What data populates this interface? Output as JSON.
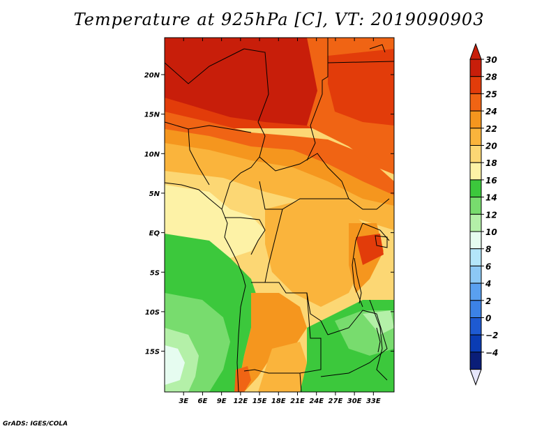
{
  "title": "Temperature at 925hPa [C], VT: 2019090903",
  "credit": "GrADS: IGES/COLA",
  "map": {
    "region": "Central Africa",
    "lon_range": [
      0,
      35
    ],
    "lat_range": [
      -20,
      25
    ],
    "lon_ticks": [
      {
        "value": 3,
        "label": "3E"
      },
      {
        "value": 6,
        "label": "6E"
      },
      {
        "value": 9,
        "label": "9E"
      },
      {
        "value": 12,
        "label": "12E"
      },
      {
        "value": 15,
        "label": "15E"
      },
      {
        "value": 18,
        "label": "18E"
      },
      {
        "value": 21,
        "label": "21E"
      },
      {
        "value": 24,
        "label": "24E"
      },
      {
        "value": 27,
        "label": "27E"
      },
      {
        "value": 30,
        "label": "30E"
      },
      {
        "value": 33,
        "label": "33E"
      }
    ],
    "lat_ticks": [
      {
        "value": 20,
        "label": "20N"
      },
      {
        "value": 15,
        "label": "15N"
      },
      {
        "value": 10,
        "label": "10N"
      },
      {
        "value": 5,
        "label": "5N"
      },
      {
        "value": 0,
        "label": "EQ"
      },
      {
        "value": -5,
        "label": "5S"
      },
      {
        "value": -10,
        "label": "10S"
      },
      {
        "value": -15,
        "label": "15S"
      }
    ]
  },
  "colorbar": {
    "levels": [
      {
        "label": "30",
        "color": "#c81e0a"
      },
      {
        "label": "28",
        "color": "#e23c0a"
      },
      {
        "label": "25",
        "color": "#f06414"
      },
      {
        "label": "24",
        "color": "#f5961e"
      },
      {
        "label": "22",
        "color": "#fab43c"
      },
      {
        "label": "20",
        "color": "#fcd774"
      },
      {
        "label": "18",
        "color": "#fdf2a6"
      },
      {
        "label": "16",
        "color": "#3cc83c"
      },
      {
        "label": "14",
        "color": "#78dc6e"
      },
      {
        "label": "12",
        "color": "#b4f0a8"
      },
      {
        "label": "10",
        "color": "#e6fcf0"
      },
      {
        "label": "8",
        "color": "#b4e6fa"
      },
      {
        "label": "6",
        "color": "#8cc8f5"
      },
      {
        "label": "4",
        "color": "#5aa0f0"
      },
      {
        "label": "2",
        "color": "#3c82e6"
      },
      {
        "label": "0",
        "color": "#1e5ad2"
      },
      {
        "label": "−2",
        "color": "#0a3cb4"
      },
      {
        "label": "−4",
        "color": "#0a1e78"
      }
    ],
    "top_arrow_color": "#c81e0a",
    "bottom_arrow_color": "#e6e6fa"
  }
}
